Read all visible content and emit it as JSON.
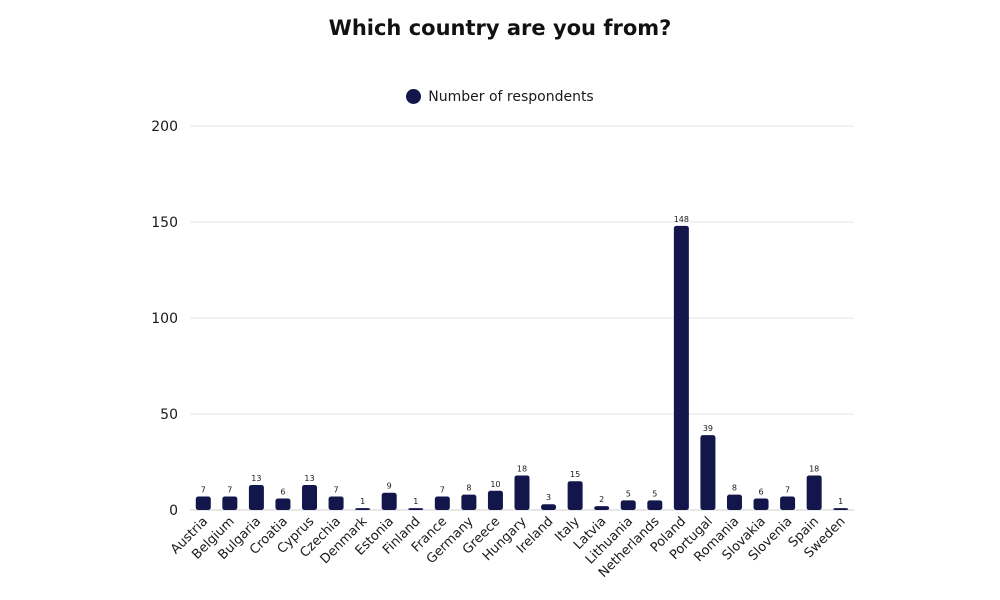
{
  "chart_data": {
    "type": "bar",
    "title": "Which country are you from?",
    "xlabel": "",
    "ylabel": "",
    "ylim": [
      0,
      200
    ],
    "yticks": [
      0,
      50,
      100,
      150,
      200
    ],
    "grid": true,
    "legend_position": "top-center",
    "categories": [
      "Austria",
      "Belgium",
      "Bulgaria",
      "Croatia",
      "Cyprus",
      "Czechia",
      "Denmark",
      "Estonia",
      "Finland",
      "France",
      "Germany",
      "Greece",
      "Hungary",
      "Ireland",
      "Italy",
      "Latvia",
      "Lithuania",
      "Netherlands",
      "Poland",
      "Portugal",
      "Romania",
      "Slovakia",
      "Slovenia",
      "Spain",
      "Sweden"
    ],
    "series": [
      {
        "name": "Number of respondents",
        "color": "#12164a",
        "values": [
          7,
          7,
          13,
          6,
          13,
          7,
          1,
          9,
          1,
          7,
          8,
          10,
          18,
          3,
          15,
          2,
          5,
          5,
          148,
          39,
          8,
          6,
          7,
          18,
          1
        ]
      }
    ]
  }
}
